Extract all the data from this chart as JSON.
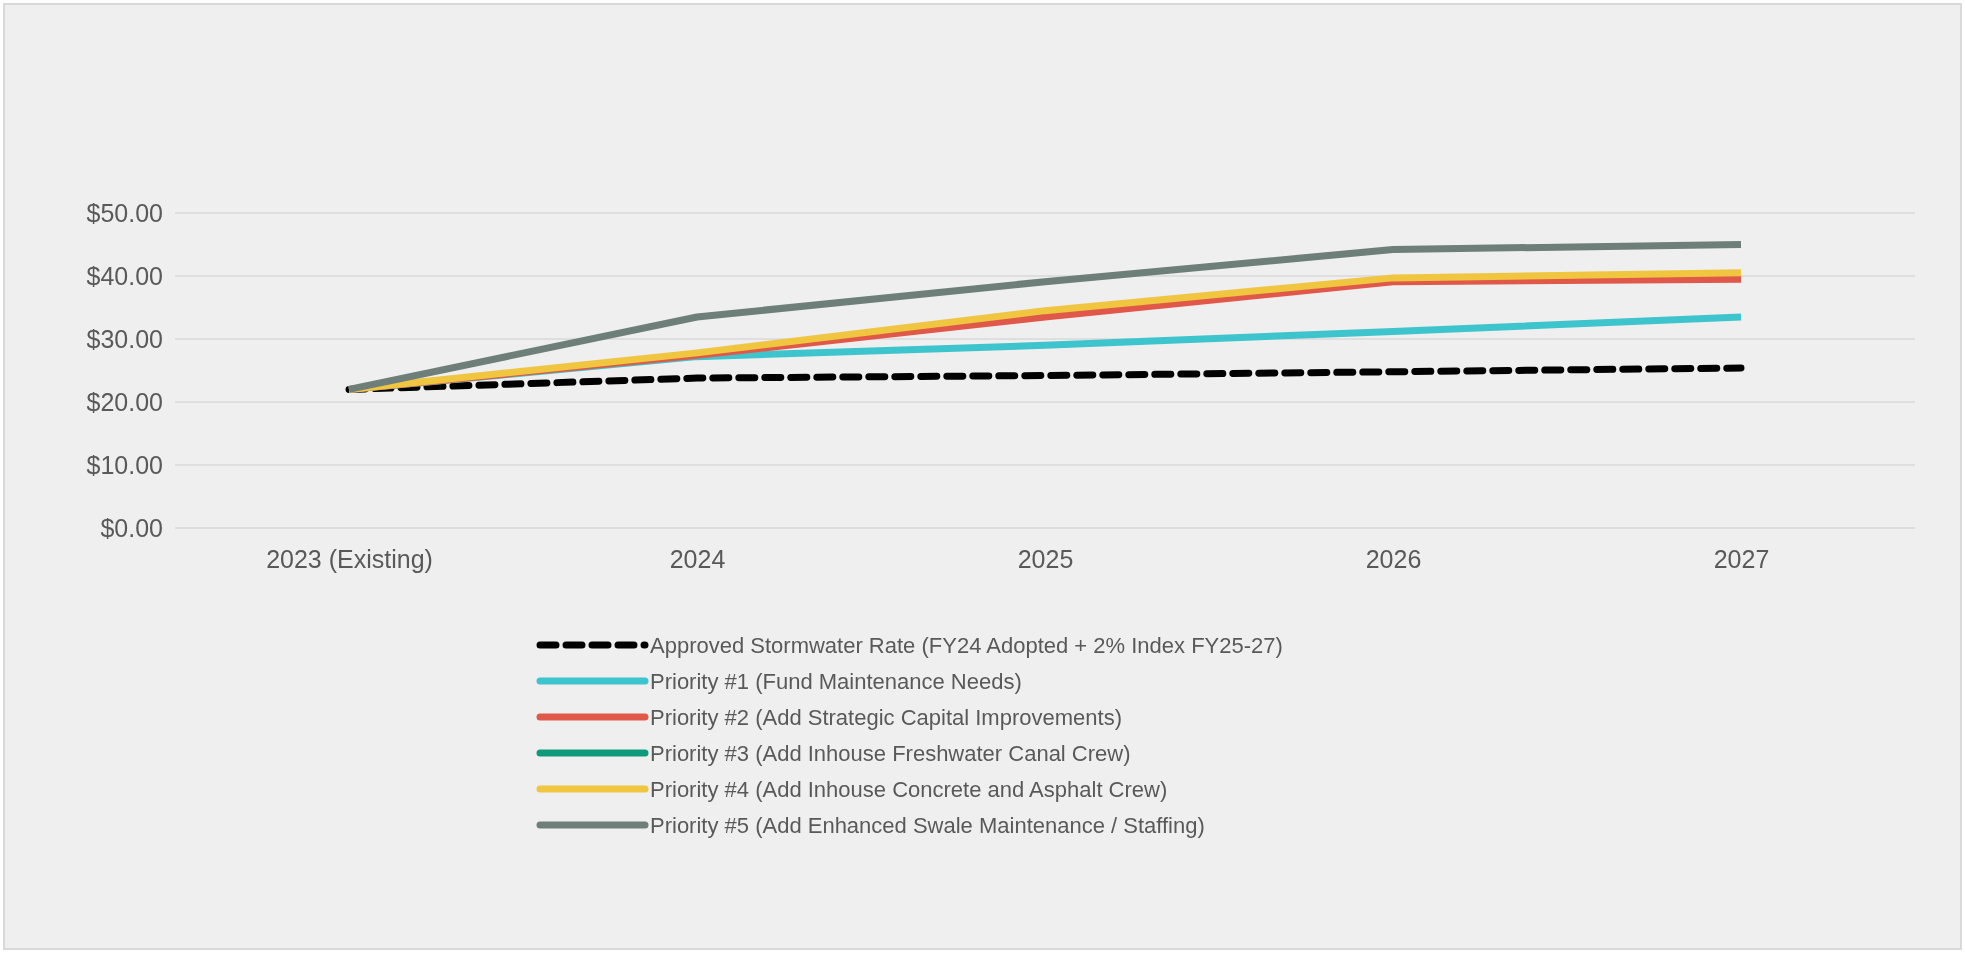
{
  "chart_data": {
    "type": "line",
    "categories": [
      "2023 (Existing)",
      "2024",
      "2025",
      "2026",
      "2027"
    ],
    "ylim": [
      0,
      50
    ],
    "yticks": [
      {
        "value": 0,
        "label": "$0.00"
      },
      {
        "value": 10,
        "label": "$10.00"
      },
      {
        "value": 20,
        "label": "$20.00"
      },
      {
        "value": 30,
        "label": "$30.00"
      },
      {
        "value": 40,
        "label": "$40.00"
      },
      {
        "value": 50,
        "label": "$50.00"
      }
    ],
    "grid": "y",
    "legend": "bottom",
    "marker": "none",
    "series": [
      {
        "name": "Approved Stormwater Rate (FY24 Adopted + 2% Index FY25-27)",
        "color": "#000000",
        "line_style": "dashed",
        "values": [
          22.0,
          23.8,
          24.2,
          24.8,
          25.4
        ]
      },
      {
        "name": "Priority #1 (Fund Maintenance Needs)",
        "color": "#3ec4cc",
        "values": [
          22.0,
          27.2,
          29.0,
          31.2,
          33.5
        ]
      },
      {
        "name": "Priority #2 (Add Strategic Capital Improvements)",
        "color": "#e0584a",
        "values": [
          22.0,
          27.4,
          33.5,
          39.1,
          39.5
        ]
      },
      {
        "name": "Priority #3 (Add Inhouse Freshwater Canal Crew)",
        "color": "#109a7c",
        "values": [
          null,
          null,
          null,
          null,
          null
        ]
      },
      {
        "name": "Priority #4 (Add Inhouse Concrete and Asphalt Crew)",
        "color": "#f0c640",
        "values": [
          22.0,
          27.8,
          34.5,
          39.7,
          40.5
        ]
      },
      {
        "name": "Priority #5 (Add Enhanced Swale Maintenance / Staffing)",
        "color": "#6e7e78",
        "values": [
          22.0,
          33.5,
          39.1,
          44.2,
          45.0
        ]
      }
    ]
  }
}
